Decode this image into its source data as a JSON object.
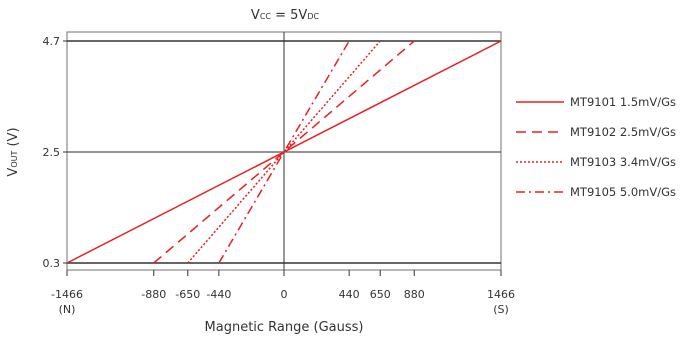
{
  "chart_data": {
    "type": "line",
    "title": {
      "main": "V",
      "sub1": "CC",
      "mid": " =  5V",
      "sub2": "DC"
    },
    "xlabel": "Magnetic Range (Gauss)",
    "ylabel": {
      "main": "V",
      "sub": "OUT",
      "rest": " (V)"
    },
    "xlim": [
      -1466,
      1466
    ],
    "ylim": [
      0.3,
      4.7
    ],
    "x_ticks": [
      {
        "value": -1466,
        "label": "-1466",
        "note": "(N)"
      },
      {
        "value": -880,
        "label": "-880"
      },
      {
        "value": -650,
        "label": "-650"
      },
      {
        "value": -440,
        "label": "-440"
      },
      {
        "value": 0,
        "label": "0"
      },
      {
        "value": 440,
        "label": "440"
      },
      {
        "value": 650,
        "label": "650"
      },
      {
        "value": 880,
        "label": "880"
      },
      {
        "value": 1466,
        "label": "1466",
        "note": "(S)"
      }
    ],
    "y_ticks": [
      {
        "value": 0.3,
        "label": "0.3"
      },
      {
        "value": 2.5,
        "label": "2.5"
      },
      {
        "value": 4.7,
        "label": "4.7"
      }
    ],
    "grid": {
      "x": [
        0
      ],
      "y": [
        2.5
      ]
    },
    "legend_position": "right",
    "color": "#e8201f",
    "series": [
      {
        "name": "MT9101 1.5mV/Gs",
        "dash": "solid",
        "x": [
          -1466,
          1466
        ],
        "y": [
          0.3,
          4.7
        ]
      },
      {
        "name": "MT9102 2.5mV/Gs",
        "dash": "dashed",
        "x": [
          -880,
          880
        ],
        "y": [
          0.3,
          4.7
        ]
      },
      {
        "name": "MT9103 3.4mV/Gs",
        "dash": "dotted",
        "x": [
          -650,
          650
        ],
        "y": [
          0.3,
          4.7
        ]
      },
      {
        "name": "MT9105 5.0mV/Gs",
        "dash": "dashdot",
        "x": [
          -440,
          440
        ],
        "y": [
          0.3,
          4.7
        ]
      }
    ]
  }
}
